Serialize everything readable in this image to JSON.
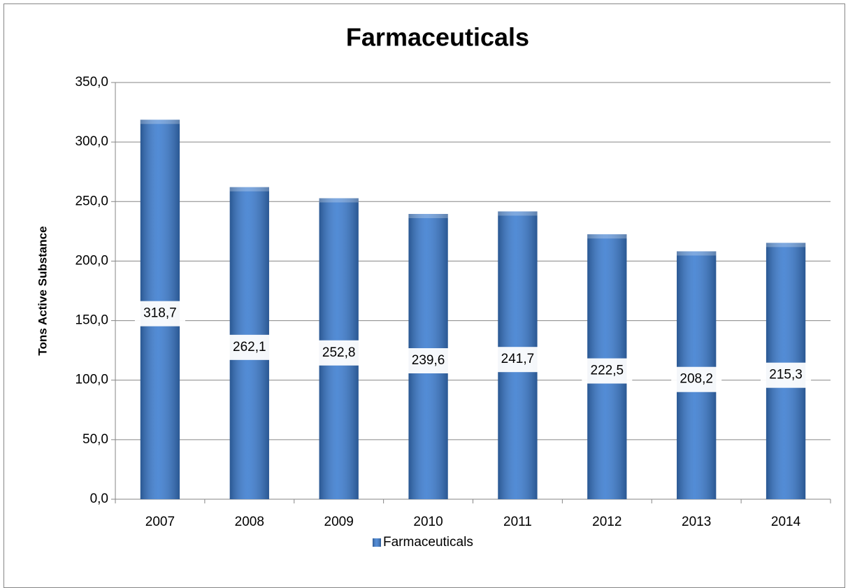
{
  "chart_data": {
    "type": "bar",
    "title": "Farmaceuticals",
    "y_label": "Tons Active Substance",
    "categories": [
      "2007",
      "2008",
      "2009",
      "2010",
      "2011",
      "2012",
      "2013",
      "2014"
    ],
    "series": [
      {
        "name": "Farmaceuticals",
        "color": "#3b7cd0",
        "values": [
          318.7,
          262.1,
          252.8,
          239.6,
          241.7,
          222.5,
          208.2,
          215.3
        ],
        "value_labels": [
          "318,7",
          "262,1",
          "252,8",
          "239,6",
          "241,7",
          "222,5",
          "208,2",
          "215,3"
        ]
      }
    ],
    "ylim": [
      0,
      350
    ],
    "yticks": [
      {
        "value": 0,
        "label": "0,0"
      },
      {
        "value": 50,
        "label": "50,0"
      },
      {
        "value": 100,
        "label": "100,0"
      },
      {
        "value": 150,
        "label": "150,0"
      },
      {
        "value": 200,
        "label": "200,0"
      },
      {
        "value": 250,
        "label": "250,0"
      },
      {
        "value": 300,
        "label": "300,0"
      },
      {
        "value": 350,
        "label": "350,0"
      }
    ],
    "grid": true,
    "legend": "bottom"
  }
}
